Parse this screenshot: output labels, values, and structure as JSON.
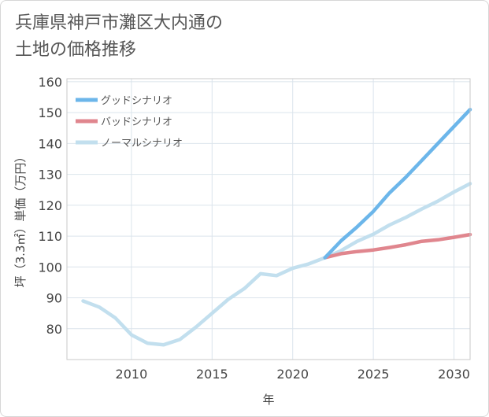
{
  "title_lines": [
    "兵庫県神戸市灘区大内通の",
    "土地の価格推移"
  ],
  "chart_data": {
    "type": "line",
    "xlabel": "年",
    "ylabel": "坪（3.3㎡）単価（万円）",
    "xlim": [
      2006,
      2031
    ],
    "ylim": [
      70,
      161
    ],
    "xticks": [
      2010,
      2015,
      2020,
      2025,
      2030
    ],
    "yticks": [
      80,
      90,
      100,
      110,
      120,
      130,
      140,
      150,
      160
    ],
    "grid": true,
    "legend_position": "top-left",
    "series": [
      {
        "name": "グッドシナリオ",
        "color": "#6cb6ea",
        "x": [
          2022,
          2023,
          2024,
          2025,
          2026,
          2027,
          2028,
          2029,
          2030,
          2031
        ],
        "y": [
          103,
          108.5,
          113,
          118,
          124,
          129,
          134.5,
          140,
          145.5,
          151
        ]
      },
      {
        "name": "バッドシナリオ",
        "color": "#e0868e",
        "x": [
          2022,
          2023,
          2024,
          2025,
          2026,
          2027,
          2028,
          2029,
          2030,
          2031
        ],
        "y": [
          103,
          104.3,
          105,
          105.5,
          106.3,
          107.2,
          108.3,
          108.8,
          109.6,
          110.5
        ]
      },
      {
        "name": "ノーマルシナリオ",
        "color": "#c2dfee",
        "x": [
          2007,
          2008,
          2009,
          2010,
          2011,
          2012,
          2013,
          2014,
          2015,
          2016,
          2017,
          2018,
          2019,
          2020,
          2021,
          2022,
          2023,
          2024,
          2025,
          2026,
          2027,
          2028,
          2029,
          2030,
          2031
        ],
        "y": [
          89,
          87,
          83.5,
          78,
          75.3,
          74.8,
          76.5,
          80.5,
          85,
          89.5,
          93,
          97.8,
          97.2,
          99.6,
          101,
          103,
          105.3,
          108.3,
          110.6,
          113.6,
          116,
          118.8,
          121.3,
          124.3,
          127
        ]
      }
    ]
  }
}
